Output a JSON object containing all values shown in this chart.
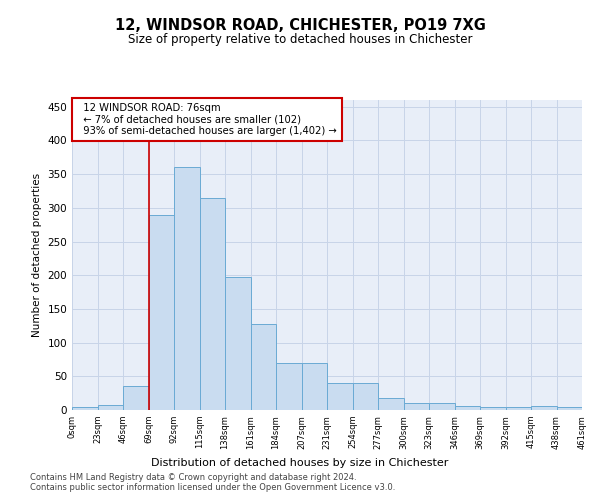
{
  "title1": "12, WINDSOR ROAD, CHICHESTER, PO19 7XG",
  "title2": "Size of property relative to detached houses in Chichester",
  "xlabel": "Distribution of detached houses by size in Chichester",
  "ylabel": "Number of detached properties",
  "bar_values": [
    5,
    7,
    35,
    290,
    360,
    315,
    197,
    127,
    70,
    70,
    40,
    40,
    18,
    10,
    10,
    6,
    4,
    4,
    6,
    5
  ],
  "bar_labels": [
    "0sqm",
    "23sqm",
    "46sqm",
    "69sqm",
    "92sqm",
    "115sqm",
    "138sqm",
    "161sqm",
    "184sqm",
    "207sqm",
    "231sqm",
    "254sqm",
    "277sqm",
    "300sqm",
    "323sqm",
    "346sqm",
    "369sqm",
    "392sqm",
    "415sqm",
    "438sqm",
    "461sqm"
  ],
  "bar_color": "#c9dcf0",
  "bar_edge_color": "#6aaad4",
  "grid_color": "#c8d4e8",
  "background_color": "#e8eef8",
  "vline_color": "#cc0000",
  "annotation_text": "  12 WINDSOR ROAD: 76sqm\n  ← 7% of detached houses are smaller (102)\n  93% of semi-detached houses are larger (1,402) →",
  "annotation_box_color": "#cc0000",
  "ylim": [
    0,
    460
  ],
  "yticks": [
    0,
    50,
    100,
    150,
    200,
    250,
    300,
    350,
    400,
    450
  ],
  "footer1": "Contains HM Land Registry data © Crown copyright and database right 2024.",
  "footer2": "Contains public sector information licensed under the Open Government Licence v3.0."
}
